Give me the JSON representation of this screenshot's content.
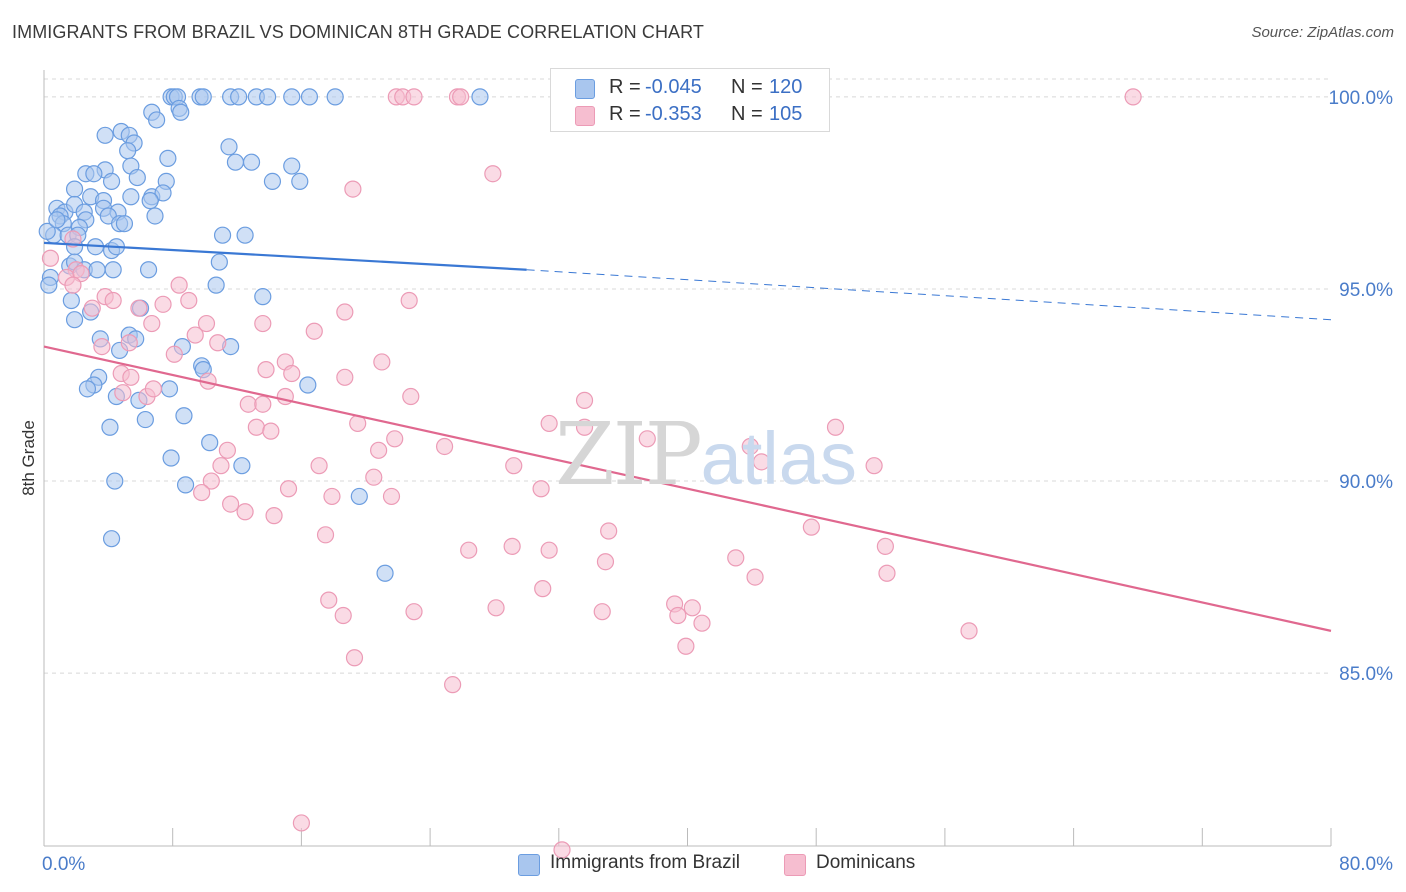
{
  "header": {
    "title": "IMMIGRANTS FROM BRAZIL VS DOMINICAN 8TH GRADE CORRELATION CHART",
    "source": "Source: ZipAtlas.com"
  },
  "watermark": {
    "zip": "ZIP",
    "atlas": "atlas"
  },
  "legend_top": {
    "rows": [
      {
        "r_label": "R =",
        "r_value": "-0.045",
        "n_label": "N =",
        "n_value": "120"
      },
      {
        "r_label": "R =",
        "r_value": "-0.353",
        "n_label": "N =",
        "n_value": "105"
      }
    ]
  },
  "legend_bottom": {
    "items": [
      {
        "label": "Immigrants from Brazil"
      },
      {
        "label": "Dominicans"
      }
    ]
  },
  "colors": {
    "brazil_fill": "#a9c6ee",
    "brazil_stroke": "#6b9de0",
    "brazil_line": "#3a78d4",
    "dominican_fill": "#f6bed0",
    "dominican_stroke": "#ec9bb6",
    "dominican_line": "#e0688f",
    "axis_text": "#4a7cc9",
    "grid": "#d8d8d8"
  },
  "chart_data": {
    "type": "scatter",
    "title": "IMMIGRANTS FROM BRAZIL VS DOMINICAN 8TH GRADE CORRELATION CHART",
    "xlabel": "",
    "ylabel": "8th Grade",
    "xlim": [
      0,
      80
    ],
    "ylim": [
      80.5,
      100.7
    ],
    "x_tick_labels": [
      "0.0%",
      "80.0%"
    ],
    "y_ticks": [
      85,
      90,
      95,
      100
    ],
    "y_tick_labels": [
      "85.0%",
      "90.0%",
      "95.0%",
      "100.0%"
    ],
    "grid": "horizontal dashed",
    "legend_placement": "top-center and bottom",
    "series": [
      {
        "name": "Immigrants from Brazil",
        "R": -0.045,
        "N": 120,
        "trend": {
          "x_start": 0,
          "y_start": 96.2,
          "x_solid_end": 30,
          "y_solid_end": 95.5,
          "x_end": 80,
          "y_end": 94.2
        },
        "points": [
          [
            7.9,
            100
          ],
          [
            8.1,
            100
          ],
          [
            8.3,
            100
          ],
          [
            9.7,
            100
          ],
          [
            9.9,
            100
          ],
          [
            11.6,
            100
          ],
          [
            12.1,
            100
          ],
          [
            13.2,
            100
          ],
          [
            13.9,
            100
          ],
          [
            15.4,
            100
          ],
          [
            16.5,
            100
          ],
          [
            18.1,
            100
          ],
          [
            27.1,
            100
          ],
          [
            6.7,
            99.6
          ],
          [
            8.4,
            99.7
          ],
          [
            8.5,
            99.6
          ],
          [
            7.0,
            99.4
          ],
          [
            4.8,
            99.1
          ],
          [
            3.8,
            99.0
          ],
          [
            5.3,
            99.0
          ],
          [
            5.6,
            98.8
          ],
          [
            5.2,
            98.6
          ],
          [
            7.7,
            98.4
          ],
          [
            5.4,
            98.2
          ],
          [
            11.5,
            98.7
          ],
          [
            12.9,
            98.3
          ],
          [
            2.6,
            98.0
          ],
          [
            3.8,
            98.1
          ],
          [
            3.1,
            98.0
          ],
          [
            4.2,
            97.8
          ],
          [
            5.8,
            97.9
          ],
          [
            7.6,
            97.8
          ],
          [
            14.2,
            97.8
          ],
          [
            15.9,
            97.8
          ],
          [
            15.4,
            98.2
          ],
          [
            11.9,
            98.3
          ],
          [
            1.9,
            97.6
          ],
          [
            2.9,
            97.4
          ],
          [
            3.7,
            97.3
          ],
          [
            5.4,
            97.4
          ],
          [
            6.7,
            97.4
          ],
          [
            7.4,
            97.5
          ],
          [
            6.6,
            97.3
          ],
          [
            0.8,
            97.1
          ],
          [
            1.3,
            97.0
          ],
          [
            1.9,
            97.2
          ],
          [
            2.5,
            97.0
          ],
          [
            2.6,
            96.8
          ],
          [
            3.7,
            97.1
          ],
          [
            4.6,
            97.0
          ],
          [
            4.0,
            96.9
          ],
          [
            1.0,
            96.9
          ],
          [
            1.2,
            96.7
          ],
          [
            0.6,
            96.4
          ],
          [
            1.5,
            96.4
          ],
          [
            2.2,
            96.6
          ],
          [
            4.7,
            96.7
          ],
          [
            5.0,
            96.7
          ],
          [
            6.9,
            96.9
          ],
          [
            11.1,
            96.4
          ],
          [
            12.5,
            96.4
          ],
          [
            0.2,
            96.5
          ],
          [
            0.8,
            96.8
          ],
          [
            2.1,
            96.4
          ],
          [
            1.9,
            96.1
          ],
          [
            3.2,
            96.1
          ],
          [
            4.2,
            96.0
          ],
          [
            4.5,
            96.1
          ],
          [
            1.6,
            95.6
          ],
          [
            1.9,
            95.7
          ],
          [
            0.4,
            95.3
          ],
          [
            0.3,
            95.1
          ],
          [
            2.5,
            95.5
          ],
          [
            3.3,
            95.5
          ],
          [
            4.3,
            95.5
          ],
          [
            6.5,
            95.5
          ],
          [
            10.9,
            95.7
          ],
          [
            10.7,
            95.1
          ],
          [
            1.7,
            94.7
          ],
          [
            2.9,
            94.4
          ],
          [
            1.9,
            94.2
          ],
          [
            6.0,
            94.5
          ],
          [
            13.6,
            94.8
          ],
          [
            5.3,
            93.8
          ],
          [
            3.5,
            93.7
          ],
          [
            5.7,
            93.7
          ],
          [
            4.7,
            93.4
          ],
          [
            8.6,
            93.5
          ],
          [
            11.6,
            93.5
          ],
          [
            9.8,
            93.0
          ],
          [
            9.9,
            92.9
          ],
          [
            3.4,
            92.7
          ],
          [
            3.1,
            92.5
          ],
          [
            2.7,
            92.4
          ],
          [
            4.5,
            92.2
          ],
          [
            5.9,
            92.1
          ],
          [
            7.8,
            92.4
          ],
          [
            16.4,
            92.5
          ],
          [
            8.7,
            91.7
          ],
          [
            6.3,
            91.6
          ],
          [
            4.1,
            91.4
          ],
          [
            10.3,
            91.0
          ],
          [
            7.9,
            90.6
          ],
          [
            12.3,
            90.4
          ],
          [
            8.8,
            89.9
          ],
          [
            4.4,
            90.0
          ],
          [
            19.6,
            89.6
          ],
          [
            4.2,
            88.5
          ],
          [
            21.2,
            87.6
          ]
        ]
      },
      {
        "name": "Dominicans",
        "R": -0.353,
        "N": 105,
        "trend": {
          "x_start": 0,
          "y_start": 93.5,
          "x_end": 80,
          "y_end": 86.1
        },
        "points": [
          [
            21.9,
            100
          ],
          [
            22.3,
            100
          ],
          [
            23.0,
            100
          ],
          [
            25.7,
            100
          ],
          [
            25.9,
            100
          ],
          [
            67.7,
            100
          ],
          [
            27.9,
            98.0
          ],
          [
            19.2,
            97.6
          ],
          [
            1.8,
            96.3
          ],
          [
            0.4,
            95.8
          ],
          [
            2.0,
            95.5
          ],
          [
            1.4,
            95.3
          ],
          [
            2.3,
            95.4
          ],
          [
            1.8,
            95.1
          ],
          [
            8.4,
            95.1
          ],
          [
            3.8,
            94.8
          ],
          [
            4.3,
            94.7
          ],
          [
            3.0,
            94.5
          ],
          [
            5.9,
            94.5
          ],
          [
            7.4,
            94.6
          ],
          [
            9.0,
            94.7
          ],
          [
            22.7,
            94.7
          ],
          [
            18.7,
            94.4
          ],
          [
            6.7,
            94.1
          ],
          [
            10.1,
            94.1
          ],
          [
            13.6,
            94.1
          ],
          [
            16.8,
            93.9
          ],
          [
            9.4,
            93.8
          ],
          [
            3.6,
            93.5
          ],
          [
            5.3,
            93.6
          ],
          [
            10.8,
            93.6
          ],
          [
            8.1,
            93.3
          ],
          [
            15.0,
            93.1
          ],
          [
            21.0,
            93.1
          ],
          [
            4.8,
            92.8
          ],
          [
            5.4,
            92.7
          ],
          [
            13.8,
            92.9
          ],
          [
            15.4,
            92.8
          ],
          [
            10.2,
            92.6
          ],
          [
            18.7,
            92.7
          ],
          [
            4.9,
            92.3
          ],
          [
            6.4,
            92.2
          ],
          [
            15.0,
            92.2
          ],
          [
            22.8,
            92.2
          ],
          [
            33.6,
            92.1
          ],
          [
            12.7,
            92.0
          ],
          [
            13.6,
            92.0
          ],
          [
            6.8,
            92.4
          ],
          [
            19.5,
            91.5
          ],
          [
            31.4,
            91.5
          ],
          [
            33.6,
            91.4
          ],
          [
            13.2,
            91.4
          ],
          [
            14.1,
            91.3
          ],
          [
            21.8,
            91.1
          ],
          [
            37.5,
            91.1
          ],
          [
            49.2,
            91.4
          ],
          [
            11.4,
            90.8
          ],
          [
            20.8,
            90.8
          ],
          [
            24.9,
            90.9
          ],
          [
            43.9,
            90.9
          ],
          [
            29.2,
            90.4
          ],
          [
            44.6,
            90.5
          ],
          [
            51.6,
            90.4
          ],
          [
            11.0,
            90.4
          ],
          [
            17.1,
            90.4
          ],
          [
            20.5,
            90.1
          ],
          [
            10.4,
            90.0
          ],
          [
            9.8,
            89.7
          ],
          [
            15.2,
            89.8
          ],
          [
            30.9,
            89.8
          ],
          [
            17.9,
            89.6
          ],
          [
            21.6,
            89.6
          ],
          [
            11.6,
            89.4
          ],
          [
            12.5,
            89.2
          ],
          [
            14.3,
            89.1
          ],
          [
            17.5,
            88.6
          ],
          [
            35.1,
            88.7
          ],
          [
            47.7,
            88.8
          ],
          [
            26.4,
            88.2
          ],
          [
            29.1,
            88.3
          ],
          [
            31.4,
            88.2
          ],
          [
            52.3,
            88.3
          ],
          [
            43.0,
            88.0
          ],
          [
            34.9,
            87.9
          ],
          [
            52.4,
            87.6
          ],
          [
            44.2,
            87.5
          ],
          [
            31.0,
            87.2
          ],
          [
            17.7,
            86.9
          ],
          [
            18.6,
            86.5
          ],
          [
            23.0,
            86.6
          ],
          [
            28.1,
            86.7
          ],
          [
            34.7,
            86.6
          ],
          [
            39.2,
            86.8
          ],
          [
            39.4,
            86.5
          ],
          [
            40.3,
            86.7
          ],
          [
            40.9,
            86.3
          ],
          [
            39.9,
            85.7
          ],
          [
            57.5,
            86.1
          ],
          [
            19.3,
            85.4
          ],
          [
            25.4,
            84.7
          ],
          [
            16.0,
            81.1
          ],
          [
            32.2,
            80.4
          ]
        ]
      }
    ]
  }
}
